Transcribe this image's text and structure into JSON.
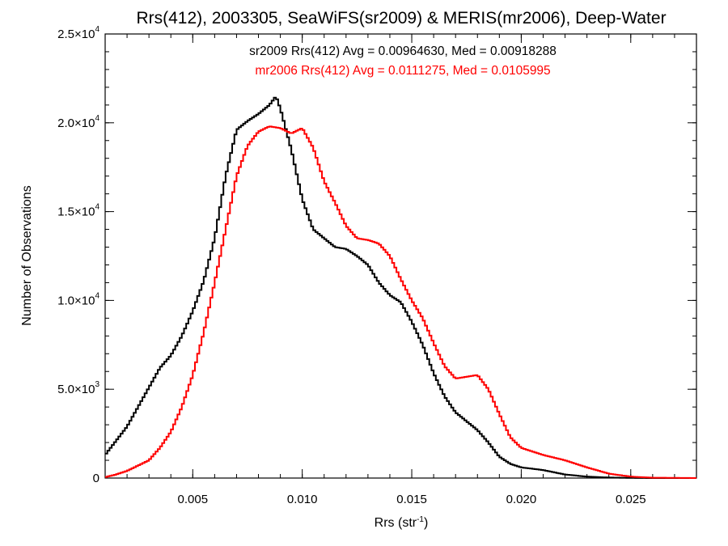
{
  "chart_data": {
    "type": "line",
    "title": "Rrs(412), 2003305, SeaWiFS(sr2009) & MERIS(mr2006), Deep-Water",
    "xlabel": {
      "base": "Rrs (str",
      "sup": "-1",
      "end": ")"
    },
    "ylabel": "Number of Observations",
    "xlim": [
      0.001,
      0.028
    ],
    "ylim": [
      0,
      25000
    ],
    "x_ticks": [
      {
        "value": 0.005,
        "label": "0.005"
      },
      {
        "value": 0.01,
        "label": "0.010"
      },
      {
        "value": 0.015,
        "label": "0.015"
      },
      {
        "value": 0.02,
        "label": "0.020"
      },
      {
        "value": 0.025,
        "label": "0.025"
      }
    ],
    "y_ticks": [
      {
        "value": 0,
        "mant": "0",
        "exp": ""
      },
      {
        "value": 5000,
        "mant": "5.0×10",
        "exp": "3"
      },
      {
        "value": 10000,
        "mant": "1.0×10",
        "exp": "4"
      },
      {
        "value": 15000,
        "mant": "1.5×10",
        "exp": "4"
      },
      {
        "value": 20000,
        "mant": "2.0×10",
        "exp": "4"
      },
      {
        "value": 25000,
        "mant": "2.5×10",
        "exp": "4"
      }
    ],
    "x_minor_step": 0.001,
    "y_minor_step": 1000,
    "legend": [
      {
        "text": "sr2009 Rrs(412) Avg = 0.00964630, Med = 0.00918288",
        "color": "#000000"
      },
      {
        "text": "mr2006 Rrs(412) Avg = 0.0111275, Med = 0.0105995",
        "color": "#ff0000"
      }
    ],
    "series": [
      {
        "color": "#000000",
        "x": [
          0.001,
          0.0015,
          0.002,
          0.0025,
          0.003,
          0.0035,
          0.004,
          0.0045,
          0.005,
          0.0055,
          0.006,
          0.0065,
          0.007,
          0.0075,
          0.008,
          0.0085,
          0.0088,
          0.009,
          0.0095,
          0.01,
          0.0105,
          0.011,
          0.0115,
          0.012,
          0.0125,
          0.013,
          0.0135,
          0.014,
          0.0145,
          0.015,
          0.0155,
          0.016,
          0.0165,
          0.017,
          0.0175,
          0.018,
          0.0185,
          0.019,
          0.0195,
          0.02,
          0.021,
          0.022,
          0.023,
          0.024,
          0.025,
          0.026,
          0.028
        ],
        "y": [
          1300,
          2100,
          2900,
          4000,
          5100,
          6200,
          6900,
          8000,
          9400,
          11100,
          13500,
          17000,
          19600,
          20100,
          20500,
          21000,
          21500,
          20800,
          18500,
          15700,
          14000,
          13500,
          13000,
          12900,
          12500,
          12000,
          11000,
          10300,
          9900,
          8800,
          7500,
          5900,
          4600,
          3700,
          3200,
          2700,
          2000,
          1200,
          800,
          600,
          450,
          200,
          80,
          30,
          10,
          0,
          0
        ]
      },
      {
        "color": "#ff0000",
        "x": [
          0.001,
          0.0015,
          0.002,
          0.0025,
          0.003,
          0.0035,
          0.004,
          0.0045,
          0.005,
          0.0055,
          0.006,
          0.0065,
          0.007,
          0.0075,
          0.008,
          0.0085,
          0.009,
          0.0095,
          0.01,
          0.0105,
          0.011,
          0.0115,
          0.012,
          0.0125,
          0.013,
          0.0135,
          0.014,
          0.0145,
          0.015,
          0.0155,
          0.016,
          0.0165,
          0.017,
          0.0175,
          0.018,
          0.0185,
          0.019,
          0.0195,
          0.02,
          0.021,
          0.022,
          0.023,
          0.024,
          0.025,
          0.026,
          0.028
        ],
        "y": [
          50,
          200,
          400,
          700,
          1000,
          1700,
          2600,
          4000,
          5800,
          8200,
          11000,
          14000,
          17000,
          18700,
          19500,
          19800,
          19700,
          19400,
          19700,
          18600,
          16700,
          15500,
          14200,
          13500,
          13400,
          13200,
          12500,
          11200,
          10000,
          9000,
          7600,
          6300,
          5600,
          5700,
          5800,
          5000,
          3600,
          2300,
          1700,
          1300,
          1000,
          600,
          250,
          80,
          20,
          0
        ]
      }
    ]
  }
}
